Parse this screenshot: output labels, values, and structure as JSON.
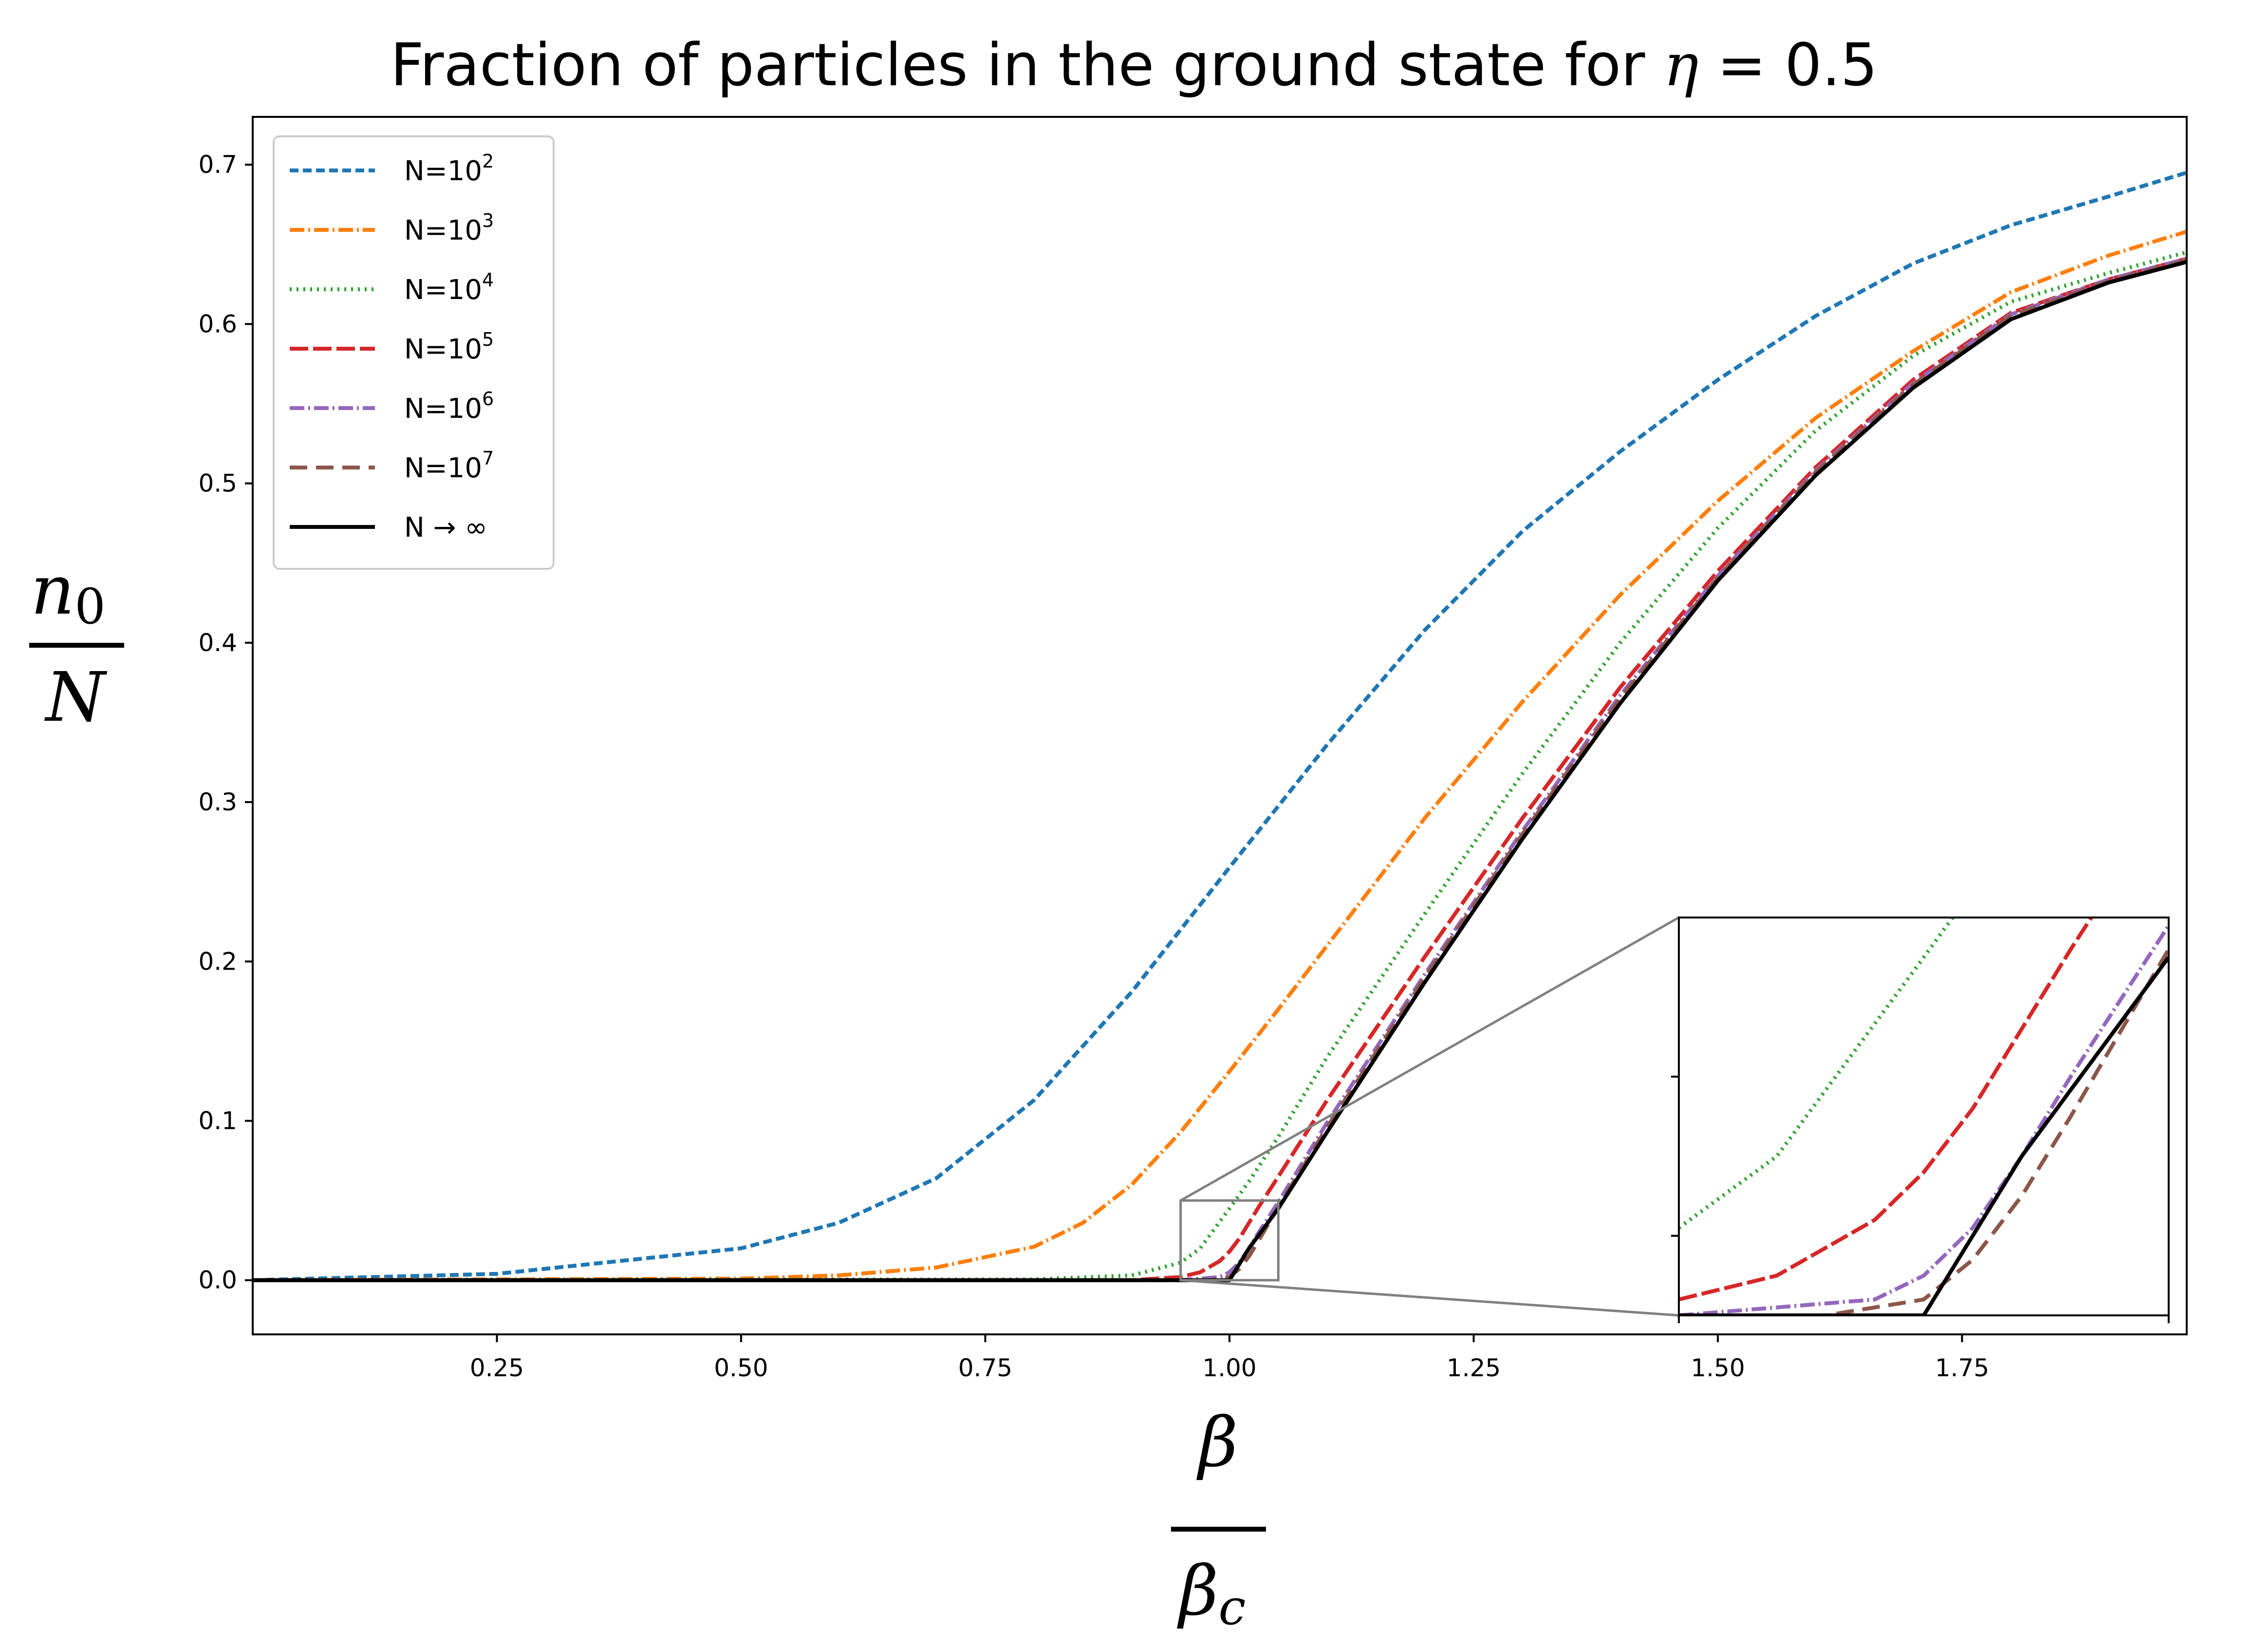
{
  "chart_data": {
    "type": "line",
    "title": "Fraction of particles in the ground state for η = 0.5",
    "title_prefix": "Fraction of particles in the ground state for ",
    "title_symbol": "η",
    "title_suffix": " = 0.5",
    "xlabel_num": "β",
    "xlabel_den": "β",
    "xlabel_den_sub": "c",
    "ylabel_num": "n",
    "ylabel_num_sub": "0",
    "ylabel_den": "N",
    "xlim": [
      0.0,
      1.98
    ],
    "ylim": [
      -0.034,
      0.73
    ],
    "xticks": [
      0.25,
      0.5,
      0.75,
      1.0,
      1.25,
      1.5,
      1.75
    ],
    "xtick_labels": [
      "0.25",
      "0.50",
      "0.75",
      "1.00",
      "1.25",
      "1.50",
      "1.75"
    ],
    "yticks": [
      0.0,
      0.1,
      0.2,
      0.3,
      0.4,
      0.5,
      0.6,
      0.7
    ],
    "ytick_labels": [
      "0.0",
      "0.1",
      "0.2",
      "0.3",
      "0.4",
      "0.5",
      "0.6",
      "0.7"
    ],
    "legend_position": "upper-left",
    "series": [
      {
        "name": "N=10",
        "exp": "2",
        "color": "#1f77b4",
        "dash": "18,9",
        "x": [
          0.0,
          0.25,
          0.5,
          0.6,
          0.7,
          0.8,
          0.9,
          1.0,
          1.1,
          1.2,
          1.3,
          1.4,
          1.5,
          1.6,
          1.7,
          1.8,
          1.9,
          1.98
        ],
        "y": [
          0.0,
          0.004,
          0.02,
          0.036,
          0.064,
          0.113,
          0.181,
          0.259,
          0.336,
          0.408,
          0.47,
          0.52,
          0.565,
          0.605,
          0.638,
          0.662,
          0.68,
          0.695
        ]
      },
      {
        "name": "N=10",
        "exp": "3",
        "color": "#ff7f0e",
        "dash": "30,8,4,8",
        "x": [
          0.0,
          0.5,
          0.6,
          0.7,
          0.8,
          0.85,
          0.9,
          0.95,
          1.0,
          1.05,
          1.1,
          1.2,
          1.3,
          1.4,
          1.5,
          1.6,
          1.7,
          1.8,
          1.9,
          1.98
        ],
        "y": [
          0.0,
          0.001,
          0.003,
          0.008,
          0.021,
          0.036,
          0.06,
          0.093,
          0.131,
          0.17,
          0.21,
          0.29,
          0.363,
          0.43,
          0.489,
          0.541,
          0.583,
          0.62,
          0.643,
          0.658
        ]
      },
      {
        "name": "N=10",
        "exp": "4",
        "color": "#2ca02c",
        "dash": "4,10",
        "x": [
          0.0,
          0.8,
          0.9,
          0.95,
          0.97,
          1.0,
          1.02,
          1.05,
          1.1,
          1.2,
          1.3,
          1.4,
          1.5,
          1.6,
          1.7,
          1.8,
          1.9,
          1.98
        ],
        "y": [
          0.0,
          0.0005,
          0.003,
          0.011,
          0.02,
          0.045,
          0.062,
          0.09,
          0.14,
          0.23,
          0.318,
          0.4,
          0.472,
          0.533,
          0.58,
          0.614,
          0.632,
          0.645
        ]
      },
      {
        "name": "N=10",
        "exp": "5",
        "color": "#d62728",
        "dash": "38,10",
        "x": [
          0.0,
          0.9,
          0.95,
          0.97,
          0.99,
          1.0,
          1.01,
          1.03,
          1.05,
          1.1,
          1.2,
          1.3,
          1.4,
          1.5,
          1.6,
          1.7,
          1.8,
          1.9,
          1.98
        ],
        "y": [
          0.0,
          0.0,
          0.002,
          0.005,
          0.012,
          0.018,
          0.026,
          0.046,
          0.065,
          0.113,
          0.203,
          0.29,
          0.372,
          0.445,
          0.51,
          0.565,
          0.607,
          0.628,
          0.641
        ]
      },
      {
        "name": "N=10",
        "exp": "6",
        "color": "#9467bd",
        "dash": "30,8,4,8",
        "x": [
          0.0,
          0.95,
          0.99,
          1.0,
          1.01,
          1.02,
          1.03,
          1.05,
          1.1,
          1.2,
          1.3,
          1.4,
          1.5,
          1.6,
          1.7,
          1.8,
          1.9,
          1.98
        ],
        "y": [
          0.0,
          0.0,
          0.002,
          0.005,
          0.011,
          0.02,
          0.03,
          0.049,
          0.099,
          0.192,
          0.282,
          0.367,
          0.442,
          0.508,
          0.563,
          0.606,
          0.628,
          0.641
        ]
      },
      {
        "name": "N=10",
        "exp": "7",
        "color": "#8c564b",
        "dash": "36,18",
        "x": [
          0.0,
          0.98,
          1.0,
          1.01,
          1.02,
          1.03,
          1.05,
          1.1,
          1.2,
          1.3,
          1.4,
          1.5,
          1.6,
          1.7,
          1.8,
          1.9,
          1.98
        ],
        "y": [
          0.0,
          0.0,
          0.002,
          0.007,
          0.015,
          0.025,
          0.046,
          0.096,
          0.19,
          0.28,
          0.365,
          0.441,
          0.507,
          0.562,
          0.605,
          0.627,
          0.64
        ]
      },
      {
        "name": "N → ∞",
        "exp": "",
        "color": "#000000",
        "dash": "",
        "x": [
          0.0,
          1.0,
          1.02,
          1.05,
          1.1,
          1.2,
          1.3,
          1.4,
          1.5,
          1.6,
          1.7,
          1.8,
          1.9,
          1.98
        ],
        "y": [
          0.0,
          0.0,
          0.02,
          0.045,
          0.093,
          0.187,
          0.277,
          0.362,
          0.439,
          0.505,
          0.56,
          0.603,
          0.626,
          0.639
        ]
      }
    ],
    "inset": {
      "xlim": [
        0.95,
        1.05
      ],
      "ylim": [
        0.0,
        0.05
      ],
      "yticks": [
        0.01,
        0.03
      ]
    }
  }
}
